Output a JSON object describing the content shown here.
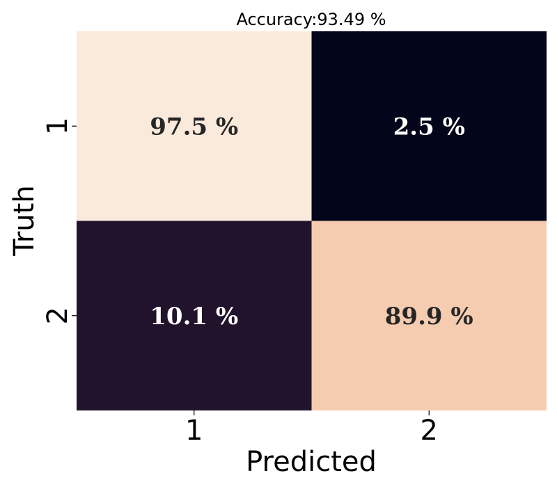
{
  "chart_data": {
    "type": "heatmap",
    "title": "Accuracy:93.49 %",
    "xlabel": "Predicted",
    "ylabel": "Truth",
    "x_categories": [
      "1",
      "2"
    ],
    "y_categories": [
      "1",
      "2"
    ],
    "values": [
      [
        97.5,
        2.5
      ],
      [
        10.1,
        89.9
      ]
    ],
    "cell_labels": [
      [
        "97.5 %",
        "2.5 %"
      ],
      [
        "10.1 %",
        "89.9 %"
      ]
    ],
    "colormap": "rocket",
    "colorbar": false,
    "cell_colors": [
      [
        "#faeadc",
        "#03051a"
      ],
      [
        "#20132b",
        "#f5ccb0"
      ]
    ],
    "label_colors": [
      [
        "#262626",
        "#ffffff"
      ],
      [
        "#ffffff",
        "#262626"
      ]
    ]
  }
}
